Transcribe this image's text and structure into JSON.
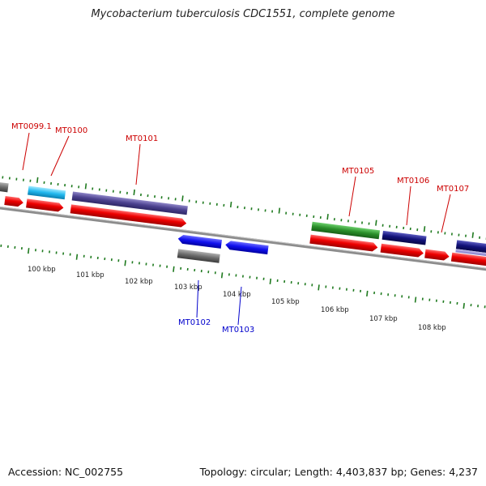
{
  "title": "Mycobacterium tuberculosis CDC1551, complete genome",
  "footer": {
    "accession": "Accession: NC_002755",
    "summary": "Topology: circular; Length: 4,403,837 bp; Genes: 4,237"
  },
  "colors": {
    "backbone": "#8c8c8c",
    "tick": "#1f7a1f",
    "forward_label": "#cc0000",
    "reverse_label": "#0000cc"
  },
  "scale": {
    "labels": [
      "100 kbp",
      "101 kbp",
      "102 kbp",
      "103 kbp",
      "104 kbp",
      "105 kbp",
      "106 kbp",
      "107 kbp",
      "108 kbp"
    ]
  },
  "genes": [
    {
      "id": "MT0099.1",
      "strand": "forward"
    },
    {
      "id": "MT0100",
      "strand": "forward"
    },
    {
      "id": "MT0101",
      "strand": "forward"
    },
    {
      "id": "MT0102",
      "strand": "reverse"
    },
    {
      "id": "MT0103",
      "strand": "reverse"
    },
    {
      "id": "MT0105",
      "strand": "forward"
    },
    {
      "id": "MT0106",
      "strand": "forward"
    },
    {
      "id": "MT0107",
      "strand": "forward"
    }
  ]
}
